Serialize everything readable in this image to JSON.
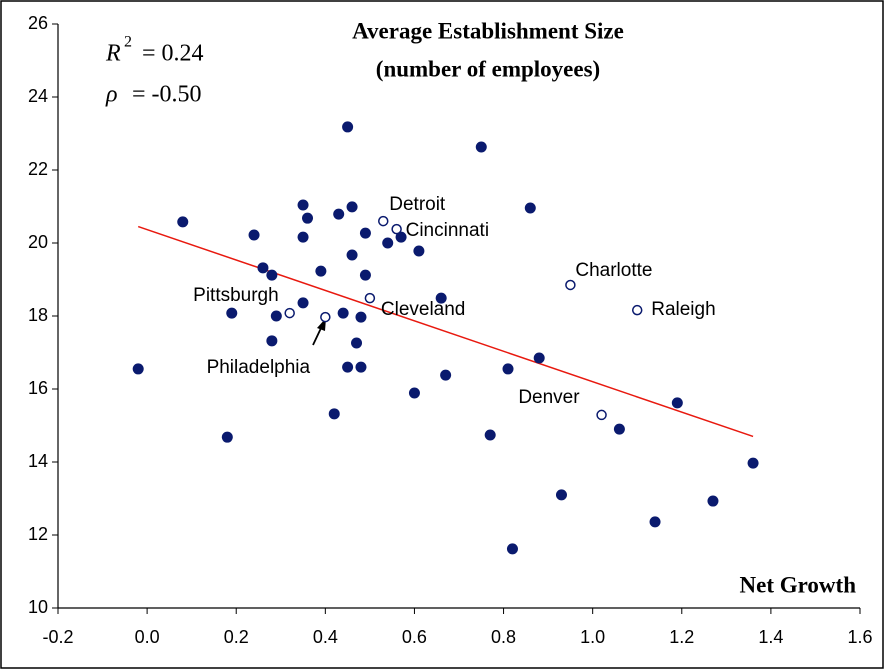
{
  "chart_data": {
    "type": "scatter",
    "title": [
      "Average Establishment Size",
      "(number of employees)"
    ],
    "x_label": "Net Growth",
    "annotations": {
      "r_squared": {
        "symbol": "R",
        "superscript": "2",
        "text": "= 0.24"
      },
      "rho": {
        "symbol": "ρ",
        "text": "= -0.50"
      }
    },
    "xlim": [
      -0.2,
      1.6
    ],
    "xticks": [
      -0.2,
      {
        "value": 0,
        "label": "0.0"
      },
      0.2,
      0.4,
      0.6,
      0.8,
      {
        "value": 1,
        "label": "1.0"
      },
      1.2,
      1.4,
      1.6
    ],
    "ylim": [
      10,
      26
    ],
    "yticks": [
      10,
      12,
      14,
      16,
      18,
      20,
      22,
      24,
      26
    ],
    "grid": false,
    "points": {
      "color": "#0a1a6e",
      "x": [
        -0.02,
        0.08,
        0.18,
        0.19,
        0.24,
        0.26,
        0.28,
        0.28,
        0.29,
        0.35,
        0.35,
        0.36,
        0.35,
        0.39,
        0.42,
        0.43,
        0.44,
        0.45,
        0.45,
        0.46,
        0.46,
        0.47,
        0.48,
        0.48,
        0.49,
        0.49,
        0.54,
        0.57,
        0.61,
        0.6,
        0.66,
        0.67,
        0.75,
        0.77,
        0.81,
        0.82,
        0.86,
        0.88,
        0.93,
        1.06,
        1.14,
        1.19,
        1.27,
        1.36
      ],
      "y": [
        16.55,
        20.58,
        14.68,
        18.08,
        20.22,
        19.32,
        19.12,
        17.32,
        18.0,
        18.36,
        21.04,
        20.68,
        20.16,
        19.23,
        15.32,
        20.79,
        18.08,
        23.18,
        16.6,
        20.99,
        19.67,
        17.26,
        16.6,
        17.97,
        20.27,
        19.12,
        20.0,
        20.16,
        19.78,
        15.89,
        18.49,
        16.38,
        22.63,
        14.74,
        16.55,
        11.62,
        20.96,
        16.85,
        13.1,
        14.9,
        12.36,
        15.62,
        12.93,
        13.97
      ]
    },
    "highlighted": {
      "color": "#0a1a6e",
      "labels": [
        "Pittsburgh",
        "Philadelphia",
        "Cleveland",
        "Detroit",
        "Cincinnati",
        "Charlotte",
        "Raleigh",
        "Denver"
      ],
      "x": [
        0.32,
        0.4,
        0.5,
        0.53,
        0.56,
        0.95,
        1.1,
        1.02
      ],
      "y": [
        18.08,
        17.97,
        18.49,
        20.6,
        20.38,
        18.85,
        18.16,
        15.29
      ]
    },
    "trendline": {
      "color": "#e8190f",
      "x": [
        -0.02,
        1.36
      ],
      "y": [
        20.45,
        14.7
      ]
    }
  }
}
